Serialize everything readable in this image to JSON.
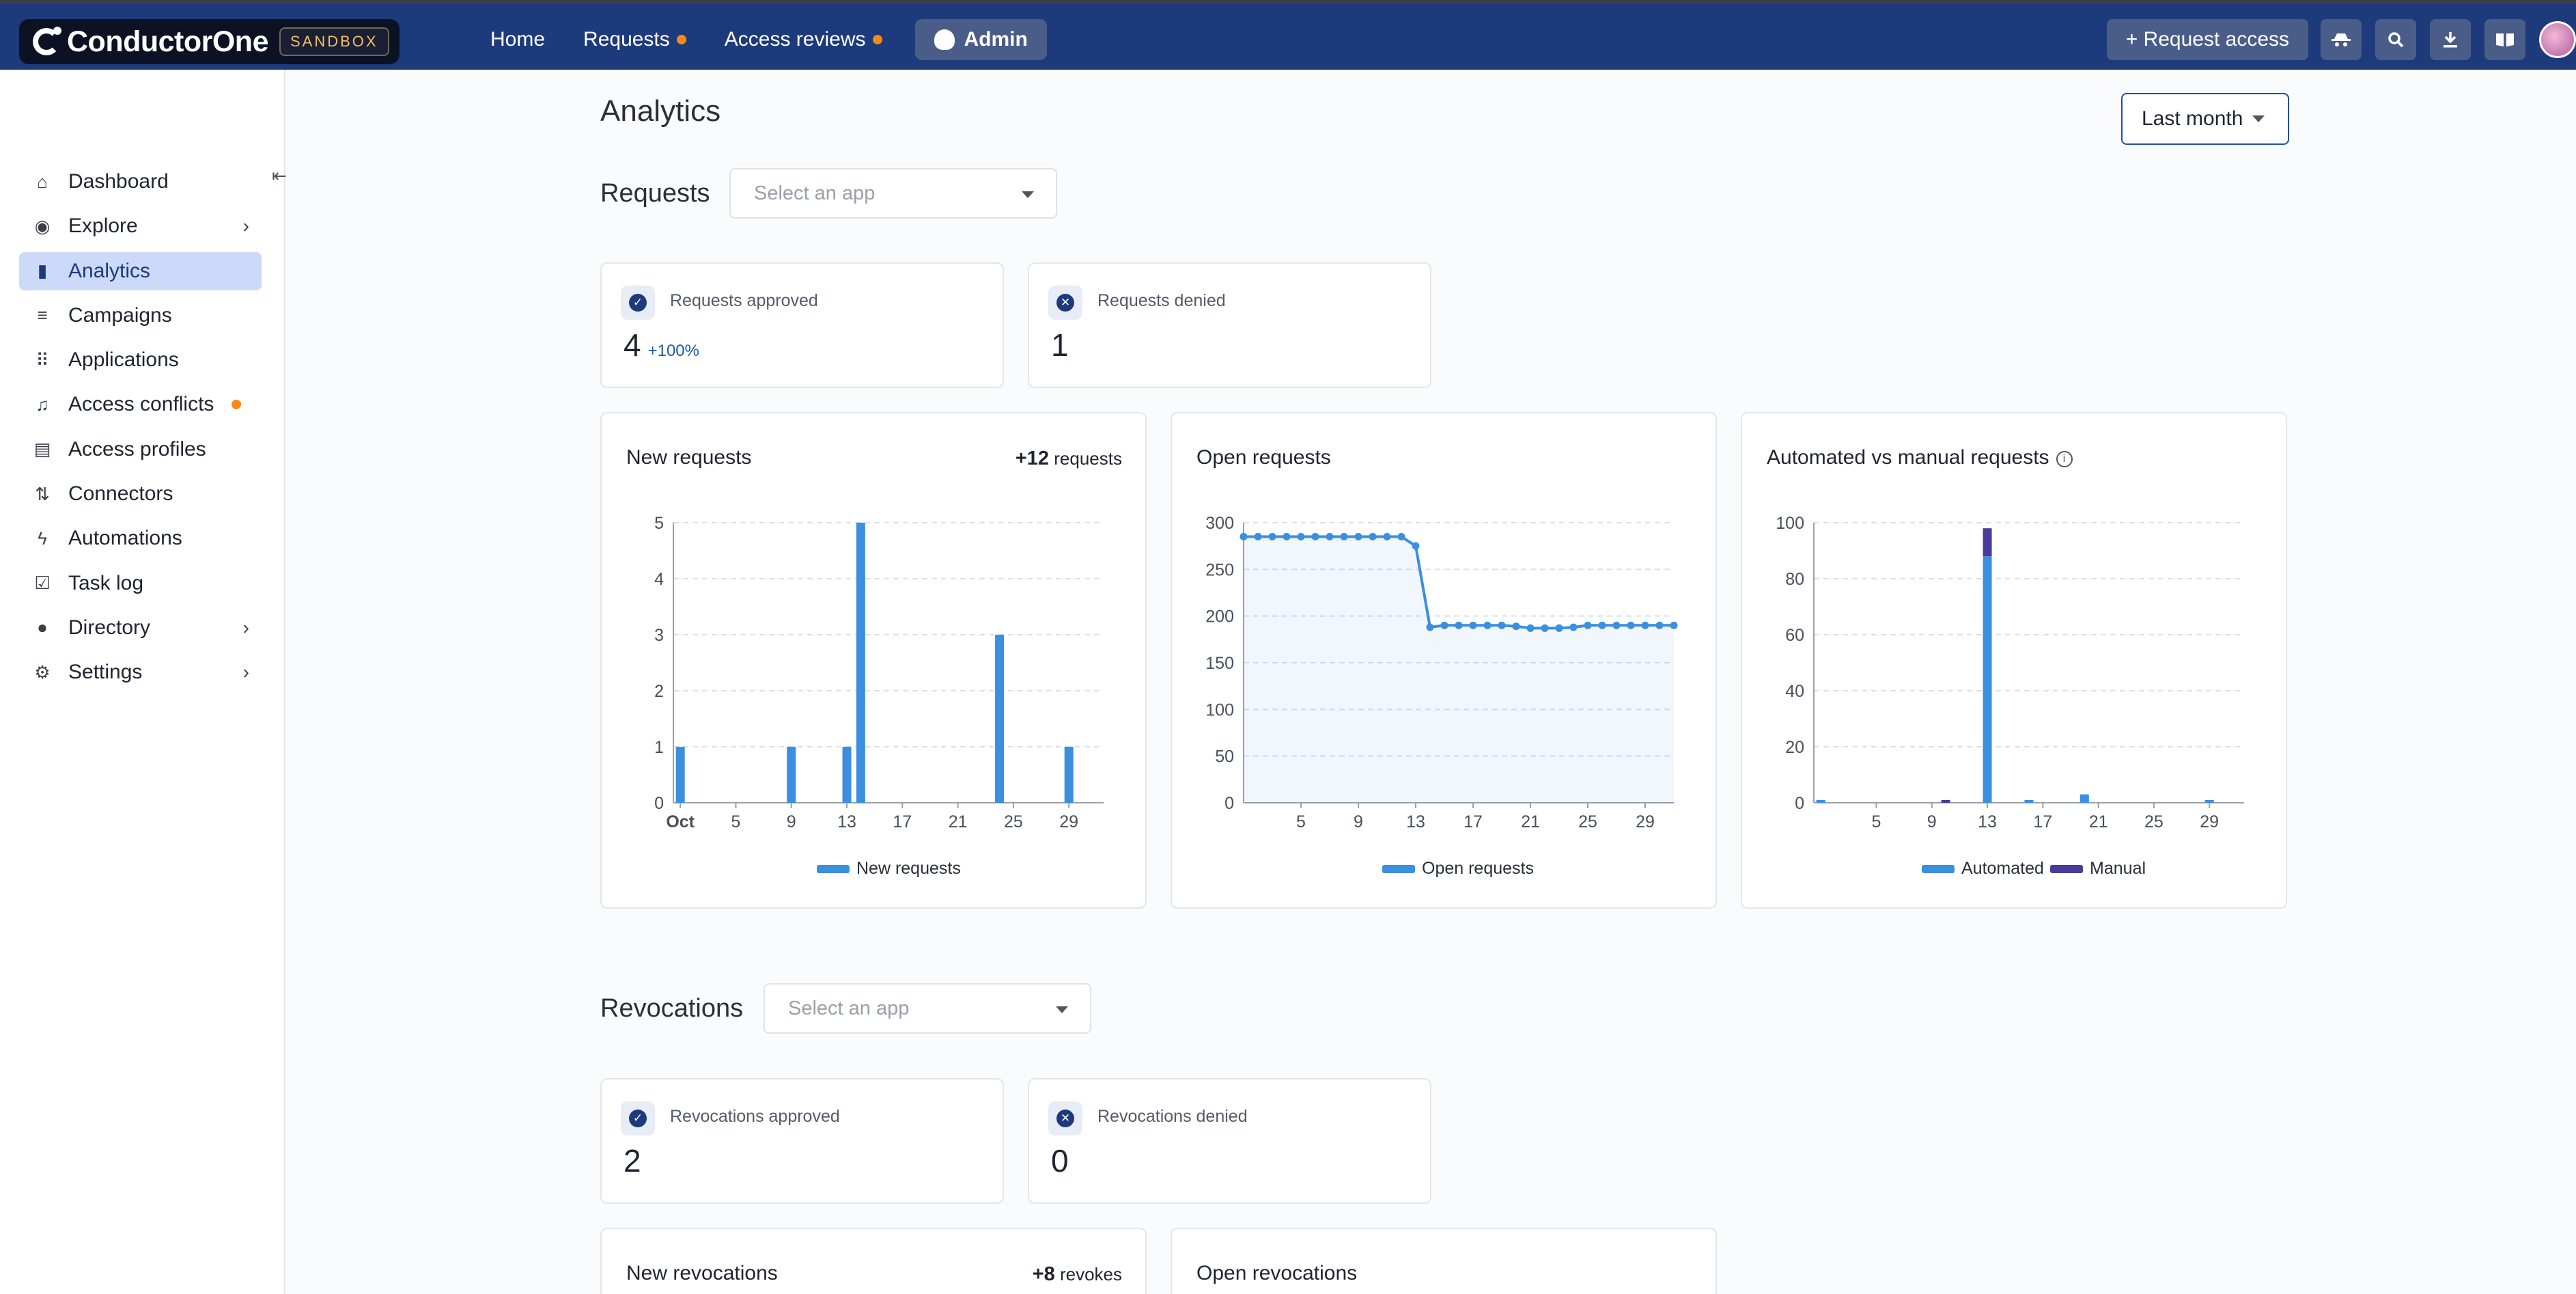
{
  "topbar": {
    "brand": "ConductorOne",
    "env_badge": "SANDBOX",
    "nav": [
      {
        "label": "Home"
      },
      {
        "label": "Requests"
      },
      {
        "label": "Access reviews"
      },
      {
        "label": "Admin"
      }
    ],
    "request_access": "+ Request access",
    "icons": [
      "spy-icon",
      "search-icon",
      "download-icon",
      "book-icon"
    ]
  },
  "sidebar": {
    "items": [
      {
        "label": "Dashboard",
        "icon": "home-icon"
      },
      {
        "label": "Explore",
        "icon": "compass-icon"
      },
      {
        "label": "Analytics",
        "icon": "bar-chart-icon"
      },
      {
        "label": "Campaigns",
        "icon": "campaigns-icon"
      },
      {
        "label": "Applications",
        "icon": "grid-icon"
      },
      {
        "label": "Access conflicts",
        "icon": "bell-alert-icon"
      },
      {
        "label": "Access profiles",
        "icon": "id-card-icon"
      },
      {
        "label": "Connectors",
        "icon": "connector-icon"
      },
      {
        "label": "Automations",
        "icon": "bolt-icon"
      },
      {
        "label": "Task log",
        "icon": "task-log-icon"
      },
      {
        "label": "Directory",
        "icon": "person-icon"
      },
      {
        "label": "Settings",
        "icon": "gear-icon"
      }
    ],
    "active": "Analytics",
    "accent": "#cdd9f8",
    "alert_color": "#f28a1a"
  },
  "page": {
    "title": "Analytics",
    "range": "Last month"
  },
  "requests": {
    "title": "Requests",
    "select_placeholder": "Select an app",
    "approved": {
      "label": "Requests approved",
      "value": "4",
      "delta": "+100%"
    },
    "denied": {
      "label": "Requests denied",
      "value": "1"
    }
  },
  "revocations": {
    "title": "Revocations",
    "select_placeholder": "Select an app",
    "approved": {
      "label": "Revocations approved",
      "value": "2"
    },
    "denied": {
      "label": "Revocations denied",
      "value": "0"
    },
    "new_title": "New revocations",
    "new_total": "+8",
    "new_total_unit": "revokes",
    "open_title": "Open revocations"
  },
  "chart_data": [
    {
      "type": "bar",
      "title": "New requests",
      "total_label": "+12",
      "total_unit": "requests",
      "x": [
        1,
        9,
        13,
        14,
        24,
        29
      ],
      "series": [
        {
          "name": "New requests",
          "values": [
            1,
            1,
            1,
            5,
            3,
            1
          ],
          "color": "#3a8fde"
        }
      ],
      "x_domain": [
        0.5,
        31.5
      ],
      "xticks": [
        1,
        5,
        9,
        13,
        17,
        21,
        25,
        29
      ],
      "xtick_labels": [
        "Oct",
        "5",
        "9",
        "13",
        "17",
        "21",
        "25",
        "29"
      ],
      "ylim": [
        0,
        5
      ],
      "yticks": [
        0,
        1,
        2,
        3,
        4,
        5
      ],
      "grid": true,
      "legend": "bottom"
    },
    {
      "type": "line",
      "title": "Open requests",
      "x": [
        1,
        2,
        3,
        4,
        5,
        6,
        7,
        8,
        9,
        10,
        11,
        12,
        13,
        14,
        15,
        16,
        17,
        18,
        19,
        20,
        21,
        22,
        23,
        24,
        25,
        26,
        27,
        28,
        29,
        30,
        31
      ],
      "series": [
        {
          "name": "Open requests",
          "values": [
            285,
            285,
            285,
            285,
            285,
            285,
            285,
            285,
            285,
            285,
            285,
            285,
            275,
            188,
            190,
            190,
            190,
            190,
            190,
            189,
            187,
            187,
            187,
            188,
            190,
            190,
            190,
            190,
            190,
            190,
            190
          ],
          "color": "#3a8fde"
        }
      ],
      "x_domain": [
        1,
        31
      ],
      "xticks": [
        5,
        9,
        13,
        17,
        21,
        25,
        29
      ],
      "xtick_labels": [
        "5",
        "9",
        "13",
        "17",
        "21",
        "25",
        "29"
      ],
      "ylim": [
        0,
        300
      ],
      "yticks": [
        0,
        50,
        100,
        150,
        200,
        250,
        300
      ],
      "grid": true,
      "legend": "bottom"
    },
    {
      "type": "bar",
      "title": "Automated vs manual requests",
      "x": [
        1,
        10,
        13,
        16,
        20,
        29
      ],
      "series": [
        {
          "name": "Automated",
          "values": [
            1,
            0,
            88,
            1,
            3,
            1
          ],
          "color": "#3a8fde"
        },
        {
          "name": "Manual",
          "values": [
            0,
            1,
            10,
            0,
            0,
            0
          ],
          "color": "#4a3a9c"
        }
      ],
      "stacked": true,
      "x_domain": [
        0.5,
        31.5
      ],
      "xticks": [
        5,
        9,
        13,
        17,
        21,
        25,
        29
      ],
      "xtick_labels": [
        "5",
        "9",
        "13",
        "17",
        "21",
        "25",
        "29"
      ],
      "ylim": [
        0,
        100
      ],
      "yticks": [
        0,
        20,
        40,
        60,
        80,
        100
      ],
      "grid": true,
      "legend": "bottom"
    }
  ]
}
